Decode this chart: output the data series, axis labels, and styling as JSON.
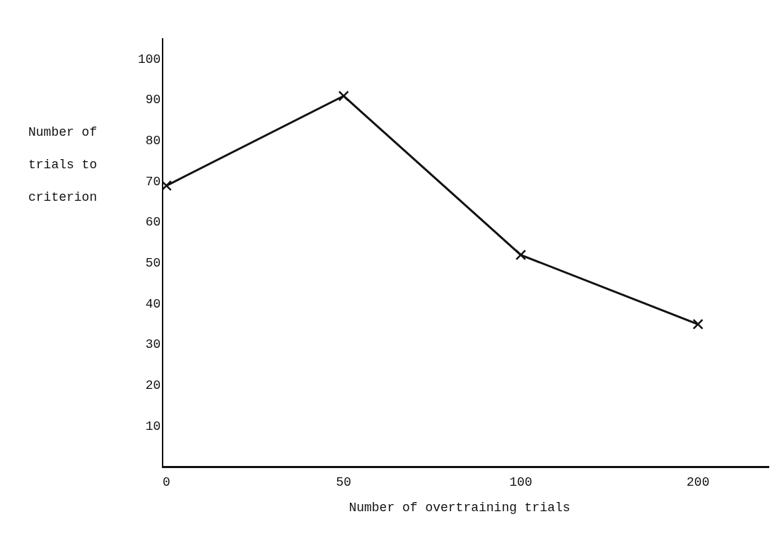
{
  "chart_data": {
    "type": "line",
    "xlabel": "Number of overtraining trials",
    "ylabel": "Number of trials to criterion",
    "categories": [
      "0",
      "50",
      "100",
      "200"
    ],
    "series": [
      {
        "color": "#111111",
        "values": [
          69,
          91,
          52,
          35
        ]
      }
    ],
    "ylim": [
      0,
      105
    ],
    "yticks": [
      10,
      20,
      30,
      40,
      50,
      60,
      70,
      80,
      90,
      100
    ],
    "grid": false,
    "legend": false,
    "marker": "cross",
    "line_style": "solid"
  }
}
